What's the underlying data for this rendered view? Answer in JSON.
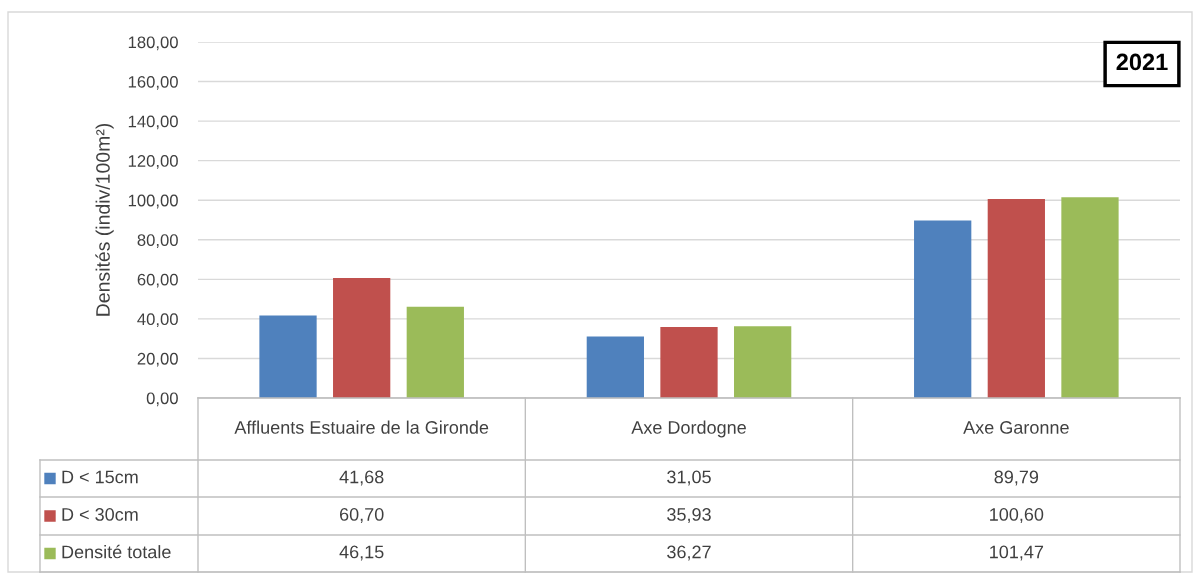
{
  "chart_data": {
    "type": "bar",
    "ylabel": "Densités (indiv/100m²)",
    "categories": [
      "Affluents Estuaire de la Gironde",
      "Axe Dordogne",
      "Axe Garonne"
    ],
    "series": [
      {
        "name": "D < 15cm",
        "color": "#4f81bd",
        "values": [
          41.68,
          31.05,
          89.79
        ],
        "value_labels": [
          "41,68",
          "31,05",
          "89,79"
        ]
      },
      {
        "name": "D < 30cm",
        "color": "#c0504d",
        "values": [
          60.7,
          35.93,
          100.6
        ],
        "value_labels": [
          "60,70",
          "35,93",
          "100,60"
        ]
      },
      {
        "name": "Densité totale",
        "color": "#9bbb59",
        "values": [
          46.15,
          36.27,
          101.47
        ],
        "value_labels": [
          "46,15",
          "36,27",
          "101,47"
        ]
      }
    ],
    "ylim": [
      0,
      180
    ],
    "yticks": [
      {
        "value": 0,
        "label": "0,00"
      },
      {
        "value": 20,
        "label": "20,00"
      },
      {
        "value": 40,
        "label": "40,00"
      },
      {
        "value": 60,
        "label": "60,00"
      },
      {
        "value": 80,
        "label": "80,00"
      },
      {
        "value": 100,
        "label": "100,00"
      },
      {
        "value": 120,
        "label": "120,00"
      },
      {
        "value": 140,
        "label": "140,00"
      },
      {
        "value": 160,
        "label": "160,00"
      },
      {
        "value": 180,
        "label": "180,00"
      }
    ],
    "grid": "y",
    "legend": "bottom",
    "annotations": [
      "2021"
    ]
  }
}
